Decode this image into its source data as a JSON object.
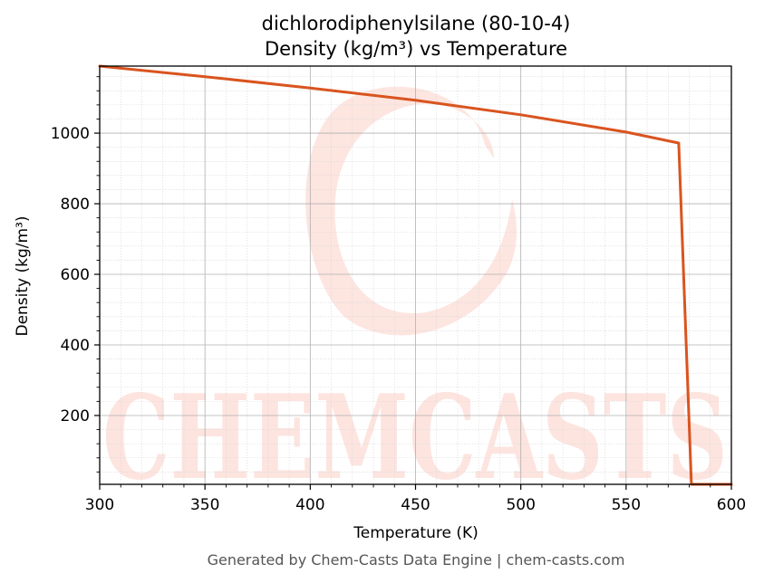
{
  "chart_data": {
    "type": "line",
    "title": "dichlorodiphenylsilane (80-10-4)",
    "subtitle": "Density (kg/m³) vs Temperature",
    "xlabel": "Temperature (K)",
    "ylabel": "Density (kg/m³)",
    "xlim": [
      300,
      600
    ],
    "ylim": [
      5,
      1190
    ],
    "x_ticks": [
      300,
      350,
      400,
      450,
      500,
      550,
      600
    ],
    "y_ticks": [
      200,
      400,
      600,
      800,
      1000
    ],
    "grid": true,
    "series": [
      {
        "color": "#d9541f",
        "points": [
          [
            300,
            1190
          ],
          [
            350,
            1160
          ],
          [
            400,
            1128
          ],
          [
            450,
            1093
          ],
          [
            500,
            1052
          ],
          [
            550,
            1003
          ],
          [
            575,
            972
          ],
          [
            581,
            5
          ],
          [
            600,
            5
          ]
        ]
      }
    ]
  },
  "watermark": {
    "text": "CHEMCASTS",
    "color": "#fde0da"
  },
  "footer": "Generated by Chem-Casts Data Engine | chem-casts.com"
}
